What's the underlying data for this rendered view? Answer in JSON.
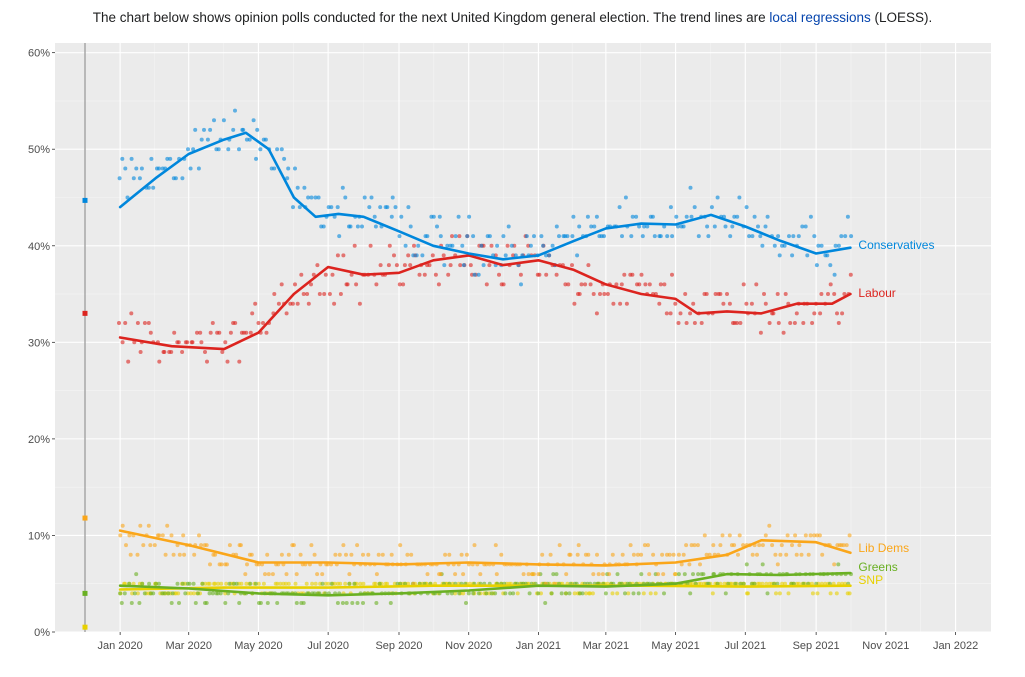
{
  "caption": {
    "before": "The chart below shows opinion polls conducted for the next United Kingdom general election. The trend lines are ",
    "link": "local regressions",
    "after": " (LOESS)."
  },
  "chart_data": {
    "type": "scatter",
    "x_ticks": [
      "Jan 2020",
      "Mar 2020",
      "May 2020",
      "Jul 2020",
      "Sep 2020",
      "Nov 2020",
      "Jan 2021",
      "Mar 2021",
      "May 2021",
      "Jul 2021",
      "Sep 2021",
      "Nov 2021",
      "Jan 2022"
    ],
    "y_ticks": [
      "0%",
      "10%",
      "20%",
      "30%",
      "40%",
      "50%",
      "60%"
    ],
    "ylim": [
      0,
      61
    ],
    "grid": true,
    "election_result_markers": [
      {
        "series": "Conservatives",
        "value": 44.7
      },
      {
        "series": "Labour",
        "value": 33.0
      },
      {
        "series": "Lib Dems",
        "value": 11.8
      },
      {
        "series": "Greens",
        "value": 4.0
      },
      {
        "series": "SNP",
        "value": 0.5
      }
    ],
    "series": [
      {
        "name": "Conservatives",
        "color": "#0087dc",
        "trend": [
          [
            "2020-01-01",
            44
          ],
          [
            "2020-02-01",
            47
          ],
          [
            "2020-03-01",
            49.5
          ],
          [
            "2020-04-01",
            51
          ],
          [
            "2020-04-20",
            51.7
          ],
          [
            "2020-05-10",
            50
          ],
          [
            "2020-06-01",
            45
          ],
          [
            "2020-06-20",
            43
          ],
          [
            "2020-07-10",
            43.3
          ],
          [
            "2020-08-01",
            43
          ],
          [
            "2020-09-01",
            41.5
          ],
          [
            "2020-10-01",
            40
          ],
          [
            "2020-11-01",
            39.2
          ],
          [
            "2020-12-01",
            38.6
          ],
          [
            "2021-01-01",
            39
          ],
          [
            "2021-02-01",
            40.5
          ],
          [
            "2021-03-01",
            41.8
          ],
          [
            "2021-04-01",
            42.3
          ],
          [
            "2021-05-01",
            42.2
          ],
          [
            "2021-06-01",
            43.2
          ],
          [
            "2021-07-01",
            42
          ],
          [
            "2021-08-01",
            40.5
          ],
          [
            "2021-09-01",
            39.2
          ],
          [
            "2021-10-01",
            39.8
          ]
        ],
        "polls_band": [
          [
            [
              "2020-01-01",
              46
            ],
            [
              "2020-04-15",
              52
            ],
            [
              "2020-05-15",
              49
            ],
            [
              "2020-06-15",
              44
            ],
            [
              "2020-08-15",
              43
            ],
            [
              "2020-10-15",
              40.5
            ],
            [
              "2020-12-15",
              39
            ],
            [
              "2021-02-15",
              41.5
            ],
            [
              "2021-04-15",
              42.5
            ],
            [
              "2021-06-15",
              43
            ],
            [
              "2021-08-15",
              41
            ],
            [
              "2021-10-01",
              40
            ]
          ],
          3.2
        ]
      },
      {
        "name": "Labour",
        "color": "#dc241f",
        "trend": [
          [
            "2020-01-01",
            30.5
          ],
          [
            "2020-02-15",
            29.6
          ],
          [
            "2020-04-01",
            29.3
          ],
          [
            "2020-05-01",
            31
          ],
          [
            "2020-06-01",
            35
          ],
          [
            "2020-07-01",
            37.8
          ],
          [
            "2020-08-01",
            37
          ],
          [
            "2020-09-01",
            37.2
          ],
          [
            "2020-10-01",
            38.5
          ],
          [
            "2020-11-01",
            39
          ],
          [
            "2020-12-01",
            38
          ],
          [
            "2021-01-01",
            38.5
          ],
          [
            "2021-02-01",
            37.5
          ],
          [
            "2021-03-01",
            36
          ],
          [
            "2021-04-01",
            35
          ],
          [
            "2021-05-01",
            34.5
          ],
          [
            "2021-05-20",
            33
          ],
          [
            "2021-06-15",
            33.2
          ],
          [
            "2021-07-15",
            33
          ],
          [
            "2021-08-15",
            34
          ],
          [
            "2021-09-15",
            34
          ],
          [
            "2021-10-01",
            35
          ]
        ],
        "polls_band": [
          [
            [
              "2020-01-01",
              30
            ],
            [
              "2020-04-01",
              29.5
            ],
            [
              "2020-06-01",
              35
            ],
            [
              "2020-08-01",
              37
            ],
            [
              "2020-10-15",
              38.5
            ],
            [
              "2021-01-01",
              38
            ],
            [
              "2021-03-15",
              35.5
            ],
            [
              "2021-06-01",
              33.5
            ],
            [
              "2021-08-01",
              33.5
            ],
            [
              "2021-10-01",
              34.5
            ]
          ],
          3.2
        ]
      },
      {
        "name": "Lib Dems",
        "color": "#faa61a",
        "trend": [
          [
            "2020-01-01",
            10.5
          ],
          [
            "2020-03-01",
            9
          ],
          [
            "2020-05-01",
            7.2
          ],
          [
            "2020-07-01",
            7.2
          ],
          [
            "2020-09-01",
            7
          ],
          [
            "2020-11-01",
            7.2
          ],
          [
            "2021-01-01",
            7
          ],
          [
            "2021-03-01",
            6.9
          ],
          [
            "2021-05-01",
            7.2
          ],
          [
            "2021-06-15",
            8
          ],
          [
            "2021-07-15",
            9.5
          ],
          [
            "2021-09-01",
            9.3
          ],
          [
            "2021-10-01",
            8.2
          ]
        ],
        "polls_band": [
          [
            [
              "2020-01-01",
              10
            ],
            [
              "2020-05-01",
              7.5
            ],
            [
              "2020-09-01",
              7.2
            ],
            [
              "2021-01-01",
              7
            ],
            [
              "2021-05-01",
              7.5
            ],
            [
              "2021-07-15",
              9.5
            ],
            [
              "2021-10-01",
              8.5
            ]
          ],
          2.0
        ]
      },
      {
        "name": "Greens",
        "color": "#6ab023",
        "trend": [
          [
            "2020-01-01",
            4.8
          ],
          [
            "2020-03-01",
            4.5
          ],
          [
            "2020-05-01",
            4
          ],
          [
            "2020-07-01",
            3.8
          ],
          [
            "2020-09-01",
            4
          ],
          [
            "2020-11-01",
            4.3
          ],
          [
            "2021-01-01",
            4.8
          ],
          [
            "2021-03-01",
            4.7
          ],
          [
            "2021-05-01",
            5
          ],
          [
            "2021-06-15",
            6
          ],
          [
            "2021-08-01",
            5.9
          ],
          [
            "2021-10-01",
            6.1
          ]
        ],
        "polls_band": [
          [
            [
              "2020-01-01",
              4.5
            ],
            [
              "2020-06-01",
              3.8
            ],
            [
              "2020-12-01",
              4.6
            ],
            [
              "2021-05-01",
              5
            ],
            [
              "2021-10-01",
              6.2
            ]
          ],
          1.5
        ]
      },
      {
        "name": "SNP",
        "color": "#e8d100",
        "trend": [
          [
            "2020-01-01",
            4.4
          ],
          [
            "2020-04-01",
            4.6
          ],
          [
            "2020-07-01",
            4.6
          ],
          [
            "2020-10-01",
            4.8
          ],
          [
            "2021-01-01",
            4.8
          ],
          [
            "2021-04-01",
            4.8
          ],
          [
            "2021-07-01",
            4.7
          ],
          [
            "2021-10-01",
            4.8
          ]
        ],
        "polls_band": [
          [
            [
              "2020-01-01",
              4.5
            ],
            [
              "2021-10-01",
              4.8
            ]
          ],
          0.9
        ]
      }
    ]
  }
}
